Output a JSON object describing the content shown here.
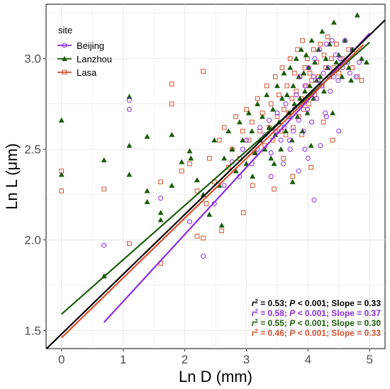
{
  "chart_data": {
    "type": "scatter",
    "title": "",
    "xlabel": "Ln D (mm)",
    "ylabel": "Ln L (μm)",
    "xlim": [
      -0.25,
      5.25
    ],
    "ylim": [
      1.4,
      3.3
    ],
    "x_ticks": [
      "0",
      "1",
      "2",
      "3",
      "4",
      "5"
    ],
    "y_ticks": [
      "1.5",
      "2.0",
      "2.5",
      "3.0"
    ],
    "x_tick_values": [
      0,
      1,
      2,
      3,
      4,
      5
    ],
    "y_tick_values": [
      1.5,
      2.0,
      2.5,
      3.0
    ],
    "grid": true,
    "legend": {
      "title": "site",
      "position": "top-left",
      "entries": [
        "Beijing",
        "Lanzhou",
        "Lasa"
      ]
    },
    "series": [
      {
        "name": "Beijing",
        "marker": "circle-open",
        "color": "#8a2be2",
        "fit": {
          "slope": 0.37,
          "intercept": 1.29,
          "x_range": [
            0.69,
            5.0
          ]
        },
        "stat": {
          "r2": "0.58",
          "p": "0.001",
          "slope": "0.37"
        },
        "x": [
          0.69,
          1.1,
          1.1,
          1.61,
          2.08,
          2.3,
          2.48,
          2.64,
          2.77,
          2.89,
          2.94,
          3.0,
          3.09,
          3.18,
          3.22,
          3.3,
          3.37,
          3.4,
          3.47,
          3.5,
          3.56,
          3.61,
          3.64,
          3.69,
          3.71,
          3.76,
          3.78,
          3.81,
          3.85,
          3.87,
          3.91,
          3.93,
          3.95,
          3.99,
          4.01,
          4.04,
          4.06,
          4.09,
          4.11,
          4.14,
          4.16,
          4.19,
          4.22,
          4.25,
          4.28,
          4.3,
          4.33,
          4.36,
          4.39,
          4.42,
          4.45,
          4.49,
          4.52,
          4.56,
          4.6,
          4.64,
          4.68,
          4.72,
          4.78,
          4.83,
          3.4,
          3.6,
          3.85,
          4.0,
          4.2,
          4.5,
          3.7,
          3.95,
          4.3,
          4.1
        ],
        "y": [
          1.97,
          2.77,
          2.72,
          2.23,
          2.1,
          1.91,
          2.2,
          2.3,
          2.43,
          2.35,
          2.5,
          2.55,
          2.42,
          2.5,
          2.62,
          2.58,
          2.66,
          2.48,
          2.6,
          2.7,
          2.55,
          2.62,
          2.75,
          2.68,
          2.5,
          2.6,
          2.72,
          2.8,
          2.66,
          2.9,
          2.75,
          2.6,
          2.85,
          2.72,
          2.95,
          2.8,
          2.65,
          2.9,
          3.0,
          2.78,
          2.88,
          3.05,
          2.85,
          2.92,
          2.7,
          3.08,
          2.95,
          2.82,
          3.1,
          2.9,
          3.02,
          2.88,
          3.0,
          2.95,
          3.1,
          2.98,
          2.92,
          3.05,
          2.9,
          2.98,
          2.35,
          2.42,
          2.38,
          2.45,
          2.52,
          2.6,
          2.55,
          2.5,
          2.68,
          2.22
        ]
      },
      {
        "name": "Lanzhou",
        "marker": "triangle-filled",
        "color": "#1a5c0a",
        "fit": {
          "slope": 0.3,
          "intercept": 1.59,
          "x_range": [
            0.0,
            5.0
          ]
        },
        "stat": {
          "r2": "0.55",
          "p": "0.001",
          "slope": "0.30"
        },
        "x": [
          0.0,
          0.0,
          0.69,
          0.69,
          1.1,
          1.1,
          1.1,
          1.39,
          1.39,
          1.39,
          1.61,
          1.61,
          1.79,
          1.79,
          1.95,
          2.08,
          2.2,
          2.3,
          2.4,
          2.48,
          2.56,
          2.64,
          2.71,
          2.77,
          2.83,
          2.89,
          2.94,
          3.0,
          3.04,
          3.09,
          3.14,
          3.18,
          3.22,
          3.26,
          3.3,
          3.33,
          3.37,
          3.4,
          3.43,
          3.47,
          3.5,
          3.53,
          3.56,
          3.58,
          3.61,
          3.64,
          3.66,
          3.69,
          3.71,
          3.74,
          3.76,
          3.78,
          3.81,
          3.83,
          3.85,
          3.87,
          3.89,
          3.91,
          3.93,
          3.95,
          3.97,
          3.99,
          4.01,
          4.03,
          4.06,
          4.09,
          4.11,
          4.14,
          4.17,
          4.2,
          4.23,
          4.26,
          4.29,
          4.32,
          4.35,
          4.38,
          4.42,
          4.46,
          4.5,
          4.55,
          4.6,
          4.66,
          4.72,
          4.8,
          4.87,
          4.95,
          2.1,
          2.6,
          3.1,
          3.45,
          3.75,
          4.05,
          4.4,
          4.7
        ],
        "y": [
          2.36,
          2.66,
          1.8,
          2.44,
          2.79,
          2.52,
          2.36,
          2.57,
          2.21,
          2.27,
          2.11,
          2.15,
          2.3,
          2.58,
          2.43,
          2.49,
          2.33,
          2.25,
          2.14,
          2.55,
          2.3,
          2.45,
          2.6,
          2.5,
          2.38,
          2.65,
          2.55,
          2.42,
          2.7,
          2.6,
          2.48,
          2.75,
          2.55,
          2.68,
          2.5,
          2.8,
          2.62,
          2.45,
          2.72,
          2.58,
          2.85,
          2.65,
          2.5,
          2.78,
          2.92,
          2.6,
          2.8,
          2.7,
          2.95,
          2.55,
          2.85,
          2.75,
          3.0,
          2.68,
          2.9,
          2.78,
          3.05,
          2.6,
          2.92,
          2.82,
          3.02,
          2.7,
          2.95,
          2.85,
          3.1,
          2.78,
          2.98,
          2.88,
          3.05,
          2.9,
          3.15,
          2.82,
          3.0,
          2.95,
          3.08,
          2.92,
          3.2,
          2.98,
          3.02,
          2.9,
          3.1,
          2.95,
          3.05,
          3.24,
          3.0,
          2.98,
          2.45,
          2.08,
          2.35,
          2.42,
          2.32,
          2.52,
          2.7,
          2.88
        ]
      },
      {
        "name": "Lasa",
        "marker": "square-open",
        "color": "#d9502e",
        "fit": {
          "slope": 0.33,
          "intercept": 1.46,
          "x_range": [
            0.0,
            4.9
          ]
        },
        "stat": {
          "r2": "0.46",
          "p": "0.001",
          "slope": "0.33"
        },
        "x": [
          0.0,
          0.0,
          0.69,
          1.1,
          1.61,
          1.61,
          1.79,
          1.79,
          1.95,
          2.08,
          2.2,
          2.3,
          2.3,
          2.4,
          2.48,
          2.56,
          2.64,
          2.71,
          2.77,
          2.83,
          2.89,
          2.94,
          3.0,
          3.04,
          3.09,
          3.14,
          3.18,
          3.22,
          3.26,
          3.3,
          3.33,
          3.37,
          3.4,
          3.43,
          3.47,
          3.5,
          3.53,
          3.56,
          3.58,
          3.61,
          3.64,
          3.66,
          3.69,
          3.71,
          3.74,
          3.76,
          3.78,
          3.81,
          3.83,
          3.85,
          3.87,
          3.89,
          3.91,
          3.93,
          3.95,
          3.97,
          3.99,
          4.01,
          4.03,
          4.06,
          4.09,
          4.11,
          4.14,
          4.17,
          4.2,
          4.23,
          4.26,
          4.29,
          4.32,
          4.35,
          4.38,
          4.42,
          4.46,
          4.5,
          4.55,
          4.6,
          4.66,
          4.72,
          4.8,
          4.87,
          2.2,
          2.6,
          3.1,
          3.45,
          3.75,
          4.05,
          4.4,
          3.6,
          3.9,
          4.25,
          2.35,
          2.95
        ],
        "y": [
          2.27,
          2.38,
          2.28,
          1.98,
          1.87,
          2.32,
          2.86,
          2.75,
          2.38,
          2.42,
          2.27,
          2.93,
          2.01,
          2.45,
          2.32,
          2.55,
          2.62,
          2.4,
          2.5,
          2.68,
          2.45,
          2.6,
          2.72,
          2.55,
          2.65,
          2.48,
          2.78,
          2.6,
          2.7,
          2.52,
          2.85,
          2.62,
          2.75,
          2.55,
          2.9,
          2.68,
          2.8,
          2.6,
          2.95,
          2.72,
          2.58,
          2.85,
          2.7,
          3.0,
          2.78,
          2.62,
          2.92,
          2.82,
          3.05,
          2.68,
          2.9,
          2.78,
          3.1,
          2.72,
          2.95,
          2.85,
          3.0,
          2.75,
          2.92,
          2.88,
          3.05,
          2.8,
          2.98,
          2.9,
          3.08,
          2.85,
          3.02,
          2.95,
          3.12,
          2.9,
          3.0,
          2.95,
          3.08,
          2.92,
          3.0,
          2.98,
          3.05,
          2.95,
          2.9,
          2.88,
          2.02,
          2.05,
          2.3,
          2.28,
          2.35,
          2.4,
          2.55,
          2.45,
          2.58,
          2.65,
          2.2,
          2.15
        ]
      }
    ],
    "overall": {
      "color": "#000000",
      "fit": {
        "slope": 0.33,
        "intercept": 1.48,
        "x_range": [
          -0.25,
          5.25
        ]
      },
      "stat": {
        "r2": "0.53",
        "p": "0.001",
        "slope": "0.33"
      }
    },
    "stat_template": {
      "r2_label": "r",
      "p_label": "P",
      "slope_label": "Slope"
    }
  }
}
